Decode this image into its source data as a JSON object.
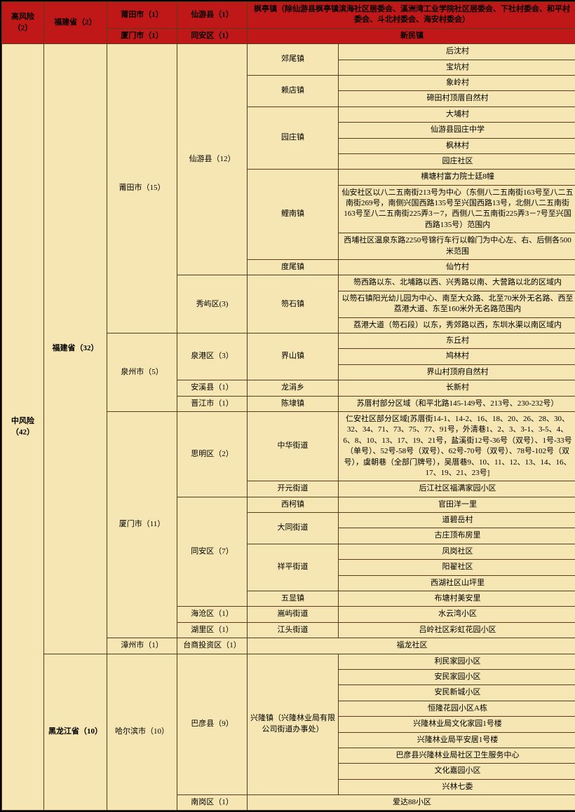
{
  "high_risk": {
    "label": "高风险（2）",
    "province": "福建省（2）",
    "rows": [
      {
        "city": "莆田市（1）",
        "county": "仙游县（1）",
        "detail_span": "枫亭镇（除仙游县枫亭镇滨海社区居委会、溪洲湾工业学院社区居委会、下社村委会、和平村委会、斗北村委会、海安村委会）"
      },
      {
        "city": "厦门市（1）",
        "county": "同安区（1）",
        "detail_span": "新民镇"
      }
    ]
  },
  "mid_risk": {
    "label": "中风险（42）",
    "fujian": {
      "label": "福建省（32）",
      "putian": {
        "label": "莆田市（15）",
        "xianyou": {
          "label": "仙游县（12）",
          "jiaowei": {
            "label": "郊尾镇",
            "items": [
              "后沈村",
              "宝坑村"
            ]
          },
          "laidian": {
            "label": "赖店镇",
            "items": [
              "象岭村",
              "碲田村顶厝自然村"
            ]
          },
          "yuanzhuang": {
            "label": "园庄镇",
            "items": [
              "大埔村",
              "仙游县园庄中学",
              "枫林村",
              "园庄社区"
            ]
          },
          "linan": {
            "label": "鲤南镇",
            "items": [
              "横塘村富力院士廷8幢",
              "仙安社区以八二五南街213号为中心（东侧八二五南街163号至八二五南街269号，南侧兴国西路135号至兴国西路13号，北侧八二五南街163号至八二五南街225弄3－7，西侧八二五南街225弄3－7号至兴国西路135号）范围内",
              "西埔社区温泉东路2250号锦行车行以翰门为中心左、右、后侧各500米范围"
            ]
          },
          "duwei": {
            "label": "度尾镇",
            "item": "仙竹村"
          }
        },
        "xiuyu": {
          "label": "秀屿区(3)",
          "hushi": {
            "label": "笏石镇",
            "items": [
              "笏西路以东、北埔路以西、兴秀路以南、大营路以北的区域内",
              "以笏石镇阳光幼儿园为中心、南至大众路、北至70米外无名路、西至荔港大道、东至160米外无名路范围内",
              "荔港大道（笏石段）以东，秀郊路以西，东圳水渠以南区域内"
            ]
          }
        }
      },
      "quanzhou": {
        "label": "泉州市（5）",
        "quangang": {
          "label": "泉港区（3）",
          "town": "界山镇",
          "items": [
            "东丘村",
            "鸠林村",
            "界山村顶府自然村"
          ]
        },
        "anxi": {
          "label": "安溪县（1）",
          "town": "龙涓乡",
          "item": "长新村"
        },
        "jinjiang": {
          "label": "晋江市（1）",
          "town": "陈埭镇",
          "item": "苏厝村部分区域（和平北路145-149号、213号、230-232号）"
        }
      },
      "xiamen": {
        "label": "厦门市（11）",
        "siming": {
          "label": "思明区（2）",
          "zhonghua": {
            "label": "中华街道",
            "item": "仁安社区部分区域[苏厝街14-1、14-2、16、18、20、26、28、30、32、34、71、73、75、77、91号，外清巷1、2、3、3-1、3-5、4、6、8、10、13、17、19、21号，盐溪街12号-36号（双号）、1号-33号（单号）、52号-58号（双号）、62号-70号（双号）、78号-102号（双号），虞朝巷（全部门牌号），吴厝巷9、10、11、12、13、14、16、17、19、21、23号]"
          },
          "kaiyuan": {
            "label": "开元街道",
            "item": "后江社区福满家园小区"
          }
        },
        "tongan": {
          "label": "同安区（7）",
          "xike": {
            "label": "西柯镇",
            "item": "官田洋一里"
          },
          "datong": {
            "label": "大同街道",
            "items": [
              "道碧岳村",
              "古庄顶布房里"
            ]
          },
          "xiangping": {
            "label": "祥平街道",
            "items": [
              "凤岗社区",
              "阳翟社区",
              "西湖社区山坪里"
            ]
          },
          "wuxian": {
            "label": "五显镇",
            "item": "布塘村美安里"
          }
        },
        "haicang": {
          "label": "海沧区（1）",
          "town": "嵩屿街道",
          "item": "水云湾小区"
        },
        "huli": {
          "label": "湖里区（1）",
          "town": "江头街道",
          "item": "吕岭社区彩虹花园小区"
        }
      },
      "zhangzhou": {
        "label": "漳州市（1）",
        "county": "台商投资区（1）",
        "item": "福龙社区"
      }
    },
    "heilongjiang": {
      "label": "黑龙江省（10）",
      "harbin": {
        "label": "哈尔滨市（10）",
        "bayan": {
          "label": "巴彦县（9）",
          "xinglong": {
            "label": "兴隆镇（兴隆林业局有限公司街道办事处）",
            "items": [
              "利民家园小区",
              "安民家园小区",
              "安民新城小区",
              "恒隆花园小区A栋",
              "兴隆林业局文化家园1号楼",
              "兴隆林业局平安居1号楼",
              "巴彦县兴隆林业局社区卫生服务中心",
              "文化嘉园小区",
              "兴林七委"
            ]
          }
        },
        "nangang": {
          "label": "南岗区（1）",
          "item": "爱达88小区"
        }
      }
    }
  }
}
